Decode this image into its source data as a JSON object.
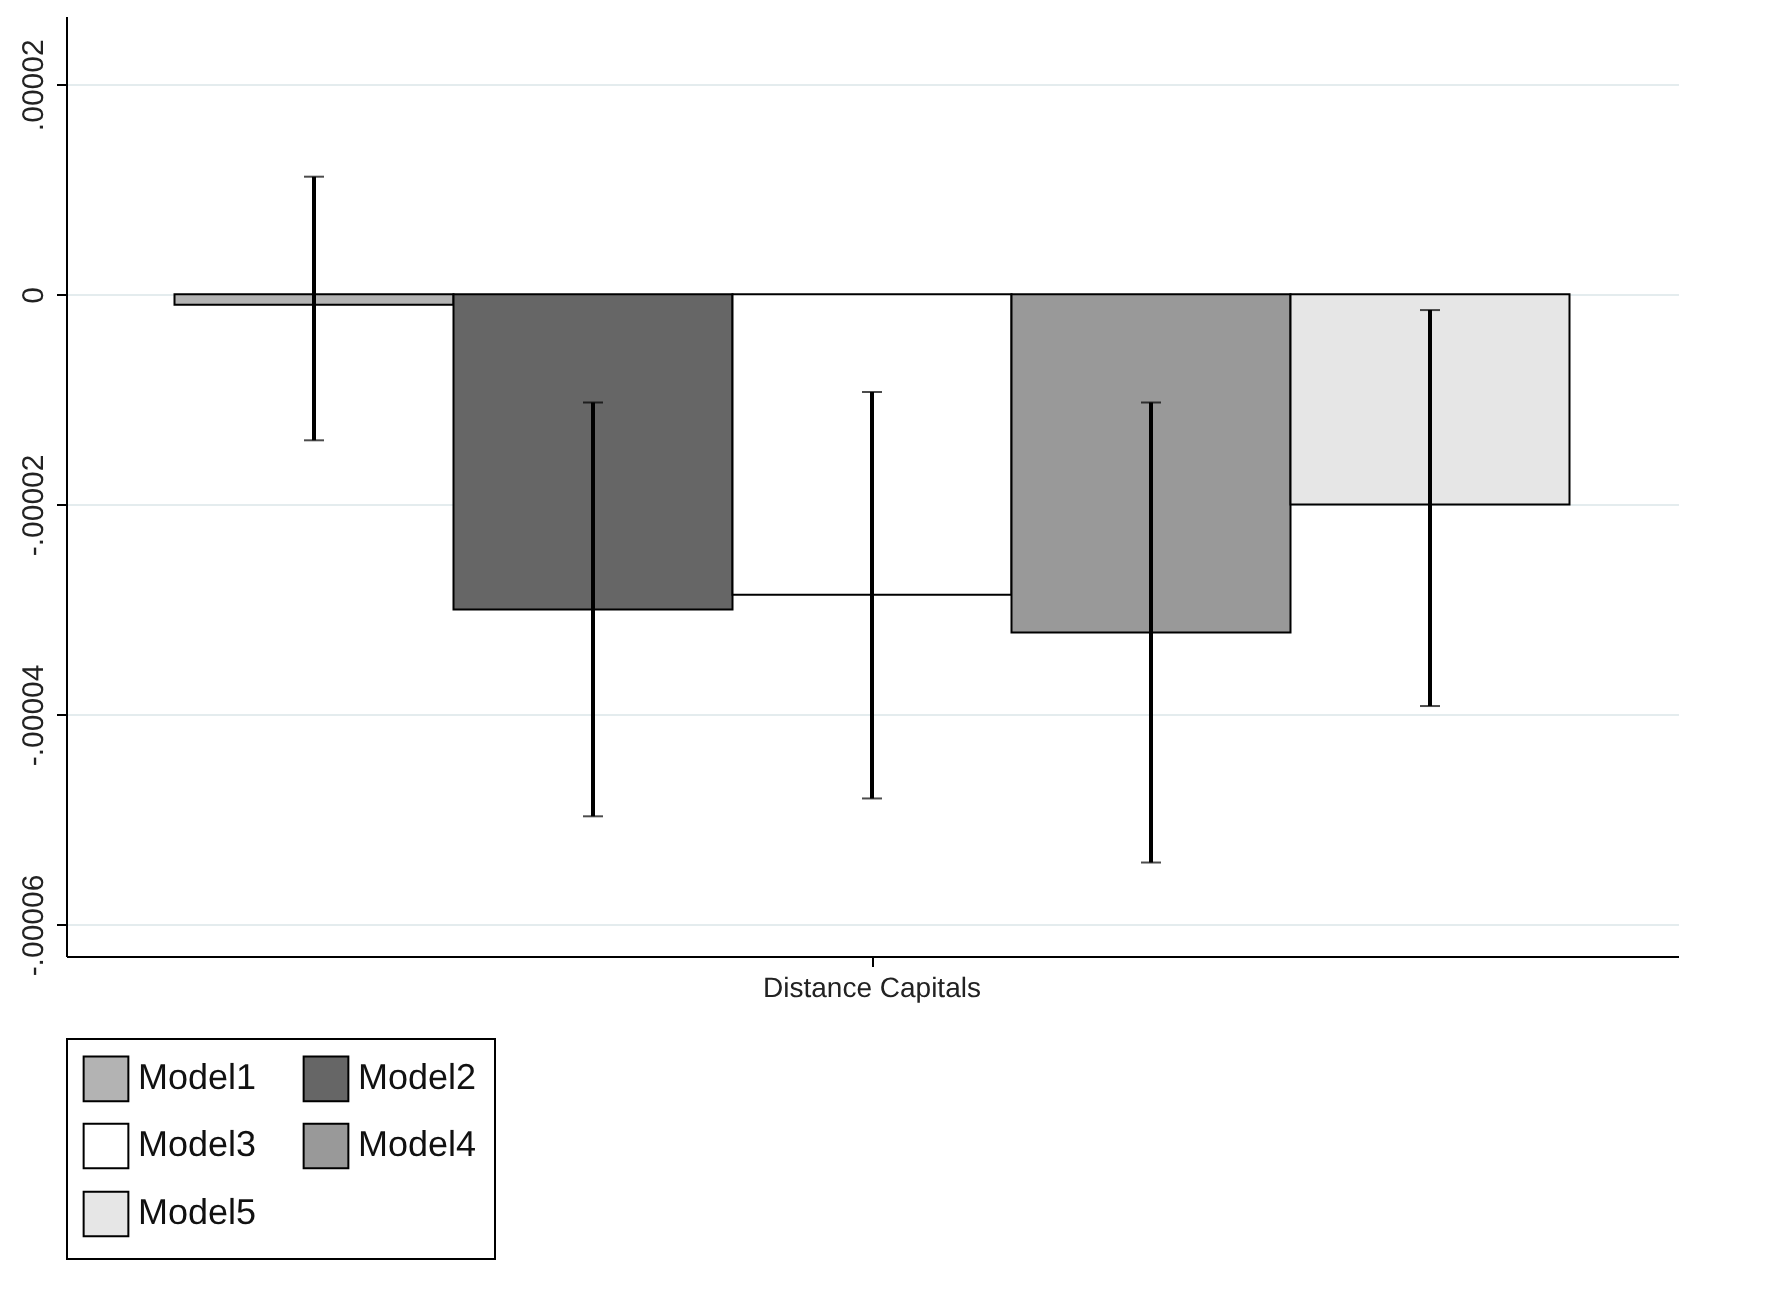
{
  "chart_data": {
    "type": "bar",
    "categories": [
      "Distance Capitals"
    ],
    "series": [
      {
        "name": "Model1",
        "color": "#b3b3b3",
        "values": [
          -1e-06
        ],
        "errors": [
          [
            -1.39e-05,
            1.12e-05
          ]
        ]
      },
      {
        "name": "Model2",
        "color": "#666666",
        "values": [
          -3e-05
        ],
        "errors": [
          [
            -4.97e-05,
            -1.03e-05
          ]
        ]
      },
      {
        "name": "Model3",
        "color": "#ffffff",
        "values": [
          -2.86e-05
        ],
        "errors": [
          [
            -4.8e-05,
            -9.3e-06
          ]
        ]
      },
      {
        "name": "Model4",
        "color": "#999999",
        "values": [
          -3.22e-05
        ],
        "errors": [
          [
            -5.41e-05,
            -1.03e-05
          ]
        ]
      },
      {
        "name": "Model5",
        "color": "#e6e6e6",
        "values": [
          -2e-05
        ],
        "errors": [
          [
            -3.92e-05,
            -1.5e-06
          ]
        ]
      }
    ],
    "ylim": [
      -6.3e-05,
      2.65e-05
    ],
    "yticks": [
      {
        "value": -6e-05,
        "label": "-.00006"
      },
      {
        "value": -4e-05,
        "label": "-.00004"
      },
      {
        "value": -2e-05,
        "label": "-.00002"
      },
      0,
      {
        "value": 2e-05,
        "label": ".00002"
      }
    ],
    "grid": "y",
    "legend": "bottom"
  }
}
